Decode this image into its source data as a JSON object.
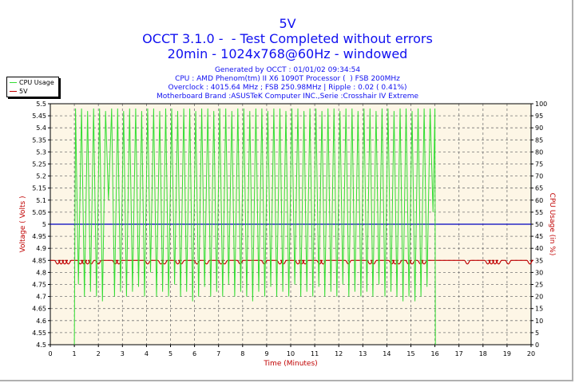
{
  "header": {
    "title": "5V",
    "line2": "OCCT 3.1.0 -  - Test Completed without errors",
    "line3": "20min - 1024x768@60Hz - windowed",
    "info": [
      "Generated by OCCT : 01/01/02 09:34:54",
      "CPU : AMD Phenom(tm) II X6 1090T Processor (  ) FSB 200MHz",
      "Overclock : 4015.64 MHz ; FSB 250.98MHz | Ripple : 0.02 ( 0.41%)",
      "Motherboard Brand :ASUSTeK Computer INC.,Serie :Crosshair IV Extreme"
    ]
  },
  "colors": {
    "title": "#1010f0",
    "cpu": "#33dd33",
    "voltage": "#c00000",
    "reference": "#0000c0",
    "plot_bg": "#fdf6e6",
    "axis_label": "#c00000"
  },
  "chart_data": {
    "type": "line",
    "xlabel": "Time (Minutes)",
    "ylabel": "Voltage ( Volts )",
    "y2label": "CPU Usage (in %)",
    "xlim": [
      0,
      20
    ],
    "ylim": [
      4.5,
      5.5
    ],
    "y2lim": [
      0,
      100
    ],
    "grid": true,
    "legend_position": "top-left",
    "xticks": [
      "0",
      "1",
      "2",
      "3",
      "4",
      "5",
      "6",
      "7",
      "8",
      "9",
      "10",
      "11",
      "12",
      "13",
      "14",
      "15",
      "16",
      "17",
      "18",
      "19",
      "20"
    ],
    "yticks": [
      "4.5",
      "4.55",
      "4.6",
      "4.65",
      "4.7",
      "4.75",
      "4.8",
      "4.85",
      "4.9",
      "4.95",
      "5",
      "5.05",
      "5.1",
      "5.15",
      "5.2",
      "5.25",
      "5.3",
      "5.35",
      "5.4",
      "5.45",
      "5.5"
    ],
    "y2ticks": [
      "0",
      "5",
      "10",
      "15",
      "20",
      "25",
      "30",
      "35",
      "40",
      "45",
      "50",
      "55",
      "60",
      "65",
      "70",
      "75",
      "80",
      "85",
      "90",
      "95",
      "100"
    ],
    "series": [
      {
        "name": "CPU Usage",
        "axis": "right",
        "points": [
          [
            1.0,
            0
          ],
          [
            1.05,
            98
          ],
          [
            1.17,
            25
          ],
          [
            1.3,
            98
          ],
          [
            1.42,
            20
          ],
          [
            1.55,
            97
          ],
          [
            1.67,
            22
          ],
          [
            1.8,
            98
          ],
          [
            1.92,
            20
          ],
          [
            2.05,
            98
          ],
          [
            2.17,
            18
          ],
          [
            2.3,
            97
          ],
          [
            2.42,
            60
          ],
          [
            2.55,
            98
          ],
          [
            2.67,
            20
          ],
          [
            2.8,
            98
          ],
          [
            2.92,
            22
          ],
          [
            3.05,
            97
          ],
          [
            3.17,
            20
          ],
          [
            3.3,
            98
          ],
          [
            3.42,
            22
          ],
          [
            3.55,
            98
          ],
          [
            3.67,
            24
          ],
          [
            3.8,
            97
          ],
          [
            3.92,
            20
          ],
          [
            4.05,
            98
          ],
          [
            4.17,
            30
          ],
          [
            4.3,
            98
          ],
          [
            4.42,
            20
          ],
          [
            4.55,
            97
          ],
          [
            4.67,
            22
          ],
          [
            4.8,
            98
          ],
          [
            4.92,
            20
          ],
          [
            5.05,
            98
          ],
          [
            5.17,
            25
          ],
          [
            5.3,
            97
          ],
          [
            5.42,
            20
          ],
          [
            5.55,
            98
          ],
          [
            5.67,
            22
          ],
          [
            5.8,
            98
          ],
          [
            5.92,
            18
          ],
          [
            6.05,
            97
          ],
          [
            6.17,
            20
          ],
          [
            6.3,
            98
          ],
          [
            6.42,
            24
          ],
          [
            6.55,
            98
          ],
          [
            6.67,
            20
          ],
          [
            6.8,
            97
          ],
          [
            6.92,
            22
          ],
          [
            7.05,
            98
          ],
          [
            7.17,
            20
          ],
          [
            7.3,
            98
          ],
          [
            7.42,
            25
          ],
          [
            7.55,
            97
          ],
          [
            7.67,
            20
          ],
          [
            7.8,
            98
          ],
          [
            7.92,
            22
          ],
          [
            8.05,
            98
          ],
          [
            8.17,
            20
          ],
          [
            8.3,
            97
          ],
          [
            8.42,
            18
          ],
          [
            8.55,
            98
          ],
          [
            8.67,
            22
          ],
          [
            8.8,
            98
          ],
          [
            8.92,
            20
          ],
          [
            9.05,
            97
          ],
          [
            9.17,
            24
          ],
          [
            9.3,
            98
          ],
          [
            9.42,
            20
          ],
          [
            9.55,
            98
          ],
          [
            9.67,
            22
          ],
          [
            9.8,
            97
          ],
          [
            9.92,
            20
          ],
          [
            10.05,
            98
          ],
          [
            10.17,
            25
          ],
          [
            10.3,
            98
          ],
          [
            10.42,
            20
          ],
          [
            10.55,
            97
          ],
          [
            10.67,
            22
          ],
          [
            10.8,
            98
          ],
          [
            10.92,
            20
          ],
          [
            11.05,
            98
          ],
          [
            11.17,
            24
          ],
          [
            11.3,
            97
          ],
          [
            11.42,
            20
          ],
          [
            11.55,
            98
          ],
          [
            11.67,
            22
          ],
          [
            11.8,
            98
          ],
          [
            11.92,
            20
          ],
          [
            12.05,
            97
          ],
          [
            12.17,
            25
          ],
          [
            12.3,
            98
          ],
          [
            12.42,
            20
          ],
          [
            12.55,
            98
          ],
          [
            12.67,
            22
          ],
          [
            12.8,
            97
          ],
          [
            12.92,
            20
          ],
          [
            13.05,
            98
          ],
          [
            13.17,
            22
          ],
          [
            13.3,
            98
          ],
          [
            13.42,
            20
          ],
          [
            13.55,
            97
          ],
          [
            13.67,
            25
          ],
          [
            13.8,
            98
          ],
          [
            13.92,
            20
          ],
          [
            14.05,
            98
          ],
          [
            14.17,
            22
          ],
          [
            14.3,
            97
          ],
          [
            14.42,
            20
          ],
          [
            14.55,
            98
          ],
          [
            14.67,
            18
          ],
          [
            14.8,
            98
          ],
          [
            14.92,
            20
          ],
          [
            15.05,
            97
          ],
          [
            15.17,
            18
          ],
          [
            15.3,
            98
          ],
          [
            15.42,
            20
          ],
          [
            15.55,
            98
          ],
          [
            15.67,
            24
          ],
          [
            15.8,
            98
          ],
          [
            15.92,
            55
          ],
          [
            16.0,
            98
          ],
          [
            16.02,
            0
          ]
        ]
      },
      {
        "name": "5V",
        "axis": "left",
        "baseline": 4.85,
        "dip_value": 4.835,
        "dip_times": [
          0.3,
          0.45,
          0.6,
          0.75,
          1.25,
          1.4,
          1.55,
          1.7,
          2.0,
          2.7,
          2.85,
          4.05,
          4.6,
          4.75,
          5.3,
          5.45,
          6.1,
          6.5,
          7.1,
          7.25,
          7.9,
          8.9,
          9.55,
          9.7,
          10.3,
          10.45,
          10.6,
          11.2,
          11.35,
          12.4,
          13.3,
          13.45,
          14.2,
          14.35,
          14.5,
          14.9,
          15.05,
          15.4,
          15.55,
          17.35,
          18.2,
          18.35,
          18.5,
          18.65,
          19.05,
          19.95
        ]
      },
      {
        "axis": "left",
        "constant": 5.0
      }
    ]
  }
}
